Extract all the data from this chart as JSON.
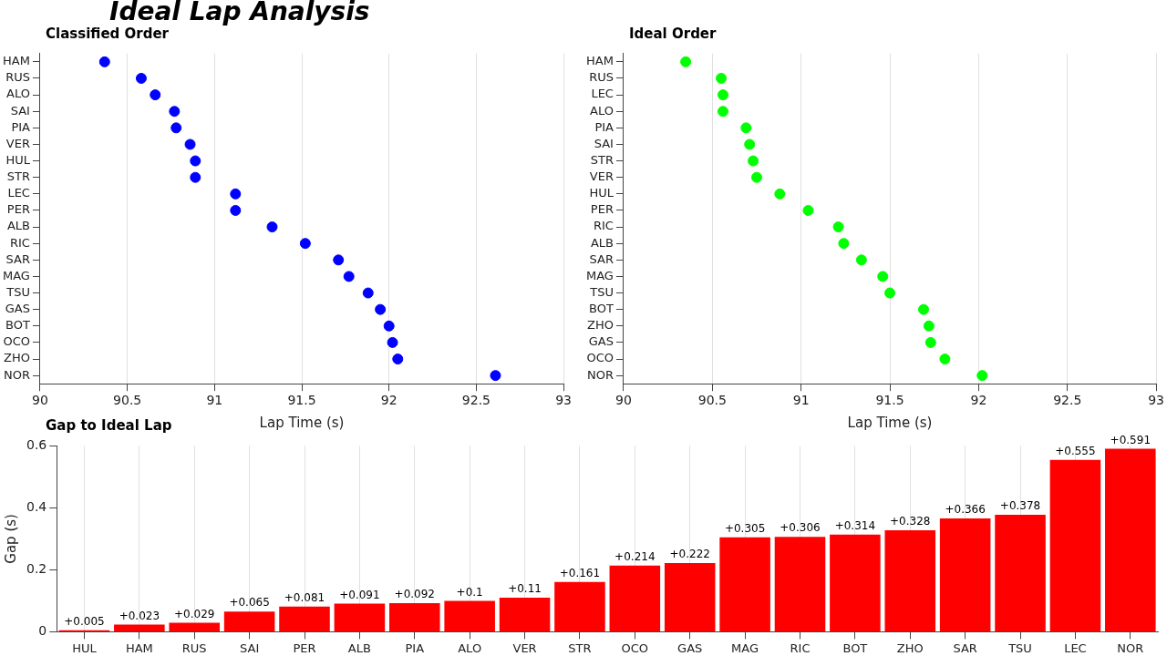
{
  "chart_data": [
    {
      "type": "scatter",
      "title": "Ideal Lap Analysis",
      "subtitle": "Classified Order",
      "orientation": "horizontal",
      "categories": [
        "HAM",
        "RUS",
        "ALO",
        "SAI",
        "PIA",
        "VER",
        "HUL",
        "STR",
        "LEC",
        "PER",
        "ALB",
        "RIC",
        "SAR",
        "MAG",
        "TSU",
        "GAS",
        "BOT",
        "OCO",
        "ZHO",
        "NOR"
      ],
      "series": [
        {
          "color": "#0000ff",
          "values": [
            90.37,
            90.58,
            90.66,
            90.77,
            90.78,
            90.86,
            90.89,
            90.89,
            91.12,
            91.12,
            91.33,
            91.52,
            91.71,
            91.77,
            91.88,
            91.95,
            92.0,
            92.02,
            92.05,
            92.61
          ]
        }
      ],
      "xlabel": "Lap Time (s)",
      "xlim": [
        90,
        93
      ],
      "xticks": [
        90,
        90.5,
        91,
        91.5,
        92,
        92.5,
        93
      ],
      "grid": "x",
      "marker": "circle",
      "legend": false
    },
    {
      "type": "scatter",
      "title": "Ideal Order",
      "orientation": "horizontal",
      "categories": [
        "HAM",
        "RUS",
        "LEC",
        "ALO",
        "PIA",
        "SAI",
        "STR",
        "VER",
        "HUL",
        "PER",
        "RIC",
        "ALB",
        "SAR",
        "MAG",
        "TSU",
        "BOT",
        "ZHO",
        "GAS",
        "OCO",
        "NOR"
      ],
      "series": [
        {
          "color": "#00ff00",
          "values": [
            90.35,
            90.55,
            90.56,
            90.56,
            90.69,
            90.71,
            90.73,
            90.75,
            90.88,
            91.04,
            91.21,
            91.24,
            91.34,
            91.46,
            91.5,
            91.69,
            91.72,
            91.73,
            91.81,
            92.02
          ]
        }
      ],
      "xlabel": "Lap Time (s)",
      "xlim": [
        90,
        93
      ],
      "xticks": [
        90,
        90.5,
        91,
        91.5,
        92,
        92.5,
        93
      ],
      "grid": "x",
      "marker": "circle",
      "legend": false
    },
    {
      "type": "bar",
      "title": "Gap to Ideal Lap",
      "categories": [
        "HUL",
        "HAM",
        "RUS",
        "SAI",
        "PER",
        "ALB",
        "PIA",
        "ALO",
        "VER",
        "STR",
        "OCO",
        "GAS",
        "MAG",
        "RIC",
        "BOT",
        "ZHO",
        "SAR",
        "TSU",
        "LEC",
        "NOR"
      ],
      "series": [
        {
          "color": "#ff0000",
          "values": [
            0.005,
            0.023,
            0.029,
            0.065,
            0.081,
            0.091,
            0.092,
            0.1,
            0.11,
            0.161,
            0.214,
            0.222,
            0.305,
            0.306,
            0.314,
            0.328,
            0.366,
            0.378,
            0.555,
            0.591
          ],
          "value_labels": [
            "+0.005",
            "+0.023",
            "+0.029",
            "+0.065",
            "+0.081",
            "+0.091",
            "+0.092",
            "+0.1",
            "+0.11",
            "+0.161",
            "+0.214",
            "+0.222",
            "+0.305",
            "+0.306",
            "+0.314",
            "+0.328",
            "+0.366",
            "+0.378",
            "+0.555",
            "+0.591"
          ]
        }
      ],
      "ylabel": "Gap (s)",
      "ylim": [
        0,
        0.6
      ],
      "yticks": [
        0,
        0.2,
        0.4,
        0.6
      ],
      "grid": "x",
      "legend": false
    }
  ]
}
